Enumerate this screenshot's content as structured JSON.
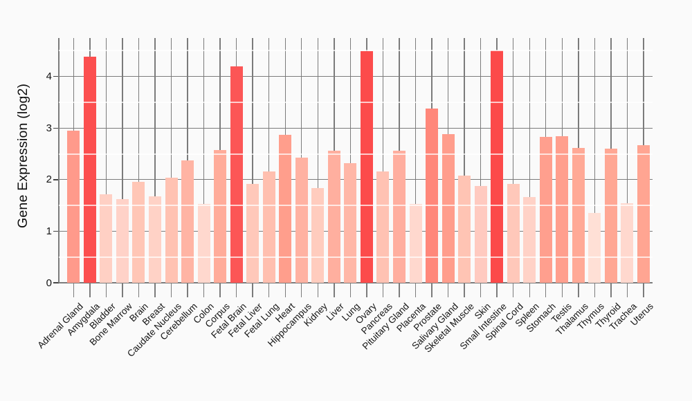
{
  "figure": {
    "background_color": "#FAFAFA",
    "grid_major_color": "#7b7b7b",
    "grid_minor_color": "rgba(255,255,255,0.72)",
    "text_color": "#141414"
  },
  "chart_data": {
    "type": "bar",
    "title": "",
    "xlabel": "",
    "ylabel": "Gene Expression (log2)",
    "ylim": [
      0,
      4.75
    ],
    "yticks": [
      0,
      1,
      2,
      3,
      4
    ],
    "minor_gridlines_y": [
      0.5,
      1.5,
      2.5,
      3.5,
      4.5
    ],
    "grid": "major gray vertical per category and horizontal per tick; white minor horizontals drawn over bars",
    "legend_position": "none",
    "categories": [
      "Adrenal Gland",
      "Amygdala",
      "Bladder",
      "Bone Marrow",
      "Brain",
      "Breast",
      "Caudate Nucleus",
      "Cerebellum",
      "Colon",
      "Corpus",
      "Fetal Brain",
      "Fetal Liver",
      "Fetal Lung",
      "Heart",
      "Hippocampus",
      "Kidney",
      "Liver",
      "Lung",
      "Ovary",
      "Pancreas",
      "Pituitary Gland",
      "Placenta",
      "Prostate",
      "Salivary Gland",
      "Skeletal Muscle",
      "Skin",
      "Small Intestine",
      "Spinal Cord",
      "Spleen",
      "Stomach",
      "Testis",
      "Thalamus",
      "Thymus",
      "Thyroid",
      "Trachea",
      "Uterus"
    ],
    "values": [
      2.95,
      4.39,
      1.72,
      1.62,
      1.96,
      1.68,
      2.04,
      2.37,
      1.53,
      2.58,
      4.2,
      1.92,
      2.16,
      2.87,
      2.43,
      1.83,
      2.56,
      2.32,
      4.49,
      2.16,
      2.56,
      1.53,
      3.38,
      2.88,
      2.08,
      1.88,
      4.5,
      1.92,
      1.66,
      2.83,
      2.84,
      2.62,
      1.36,
      2.6,
      1.54,
      2.67
    ],
    "bar_colors": [
      "#FF9A8B",
      "#FC4F4F",
      "#FFD0C4",
      "#FFD2C8",
      "#FFC6B6",
      "#FFD2C6",
      "#FFC2B2",
      "#FFB4A4",
      "#FFD8CE",
      "#FFAC9A",
      "#FC5656",
      "#FFC8BA",
      "#FFBFAF",
      "#FF9E8C",
      "#FFB2A2",
      "#FFCCBE",
      "#FFAF9F",
      "#FFB7A7",
      "#FC4B4B",
      "#FFC2B3",
      "#FFAE9F",
      "#FFD8CE",
      "#FF877A",
      "#FF9D8C",
      "#FFC4B4",
      "#FFCAC0",
      "#FC4A4A",
      "#FFC8BA",
      "#FFD2C7",
      "#FF9F8E",
      "#FF9F8E",
      "#FFA996",
      "#FFE0D6",
      "#FFA794",
      "#FFD8CE",
      "#FFA592"
    ],
    "highlight_color": "#FC4F4F",
    "highlighted_categories": [
      "Amygdala",
      "Fetal Brain",
      "Ovary",
      "Small Intestine"
    ],
    "color_scale": {
      "description": "light pink (low) to saturated red (high)",
      "min_value": 1.36,
      "min_color": "#FFE0D6",
      "max_value": 4.5,
      "max_color": "#FC4A4A"
    }
  }
}
